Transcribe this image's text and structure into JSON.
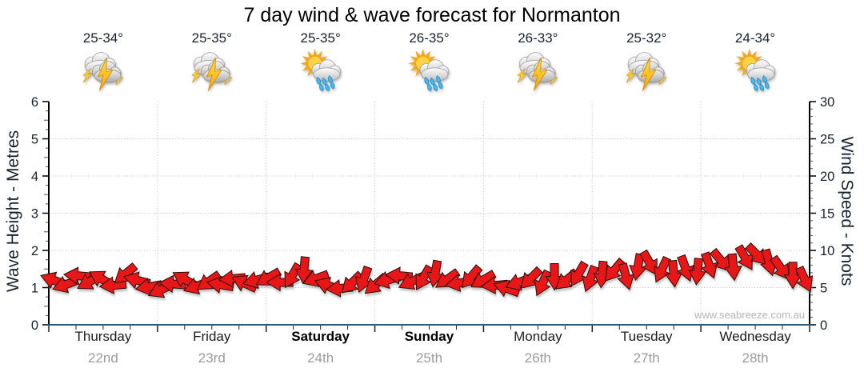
{
  "title": "7 day wind & wave forecast for Normanton",
  "watermark": "www.seabreeze.com.au",
  "days": [
    {
      "name": "Thursday",
      "date": "22nd",
      "temp": "25-34°",
      "icon": "storm",
      "is_weekend": false
    },
    {
      "name": "Friday",
      "date": "23rd",
      "temp": "25-35°",
      "icon": "storm",
      "is_weekend": false
    },
    {
      "name": "Saturday",
      "date": "24th",
      "temp": "25-35°",
      "icon": "sun-rain",
      "is_weekend": true
    },
    {
      "name": "Sunday",
      "date": "25th",
      "temp": "26-35°",
      "icon": "sun-rain",
      "is_weekend": true
    },
    {
      "name": "Monday",
      "date": "26th",
      "temp": "26-33°",
      "icon": "storm",
      "is_weekend": false
    },
    {
      "name": "Tuesday",
      "date": "27th",
      "temp": "25-32°",
      "icon": "storm",
      "is_weekend": false
    },
    {
      "name": "Wednesday",
      "date": "28th",
      "temp": "24-34°",
      "icon": "sun-rain",
      "is_weekend": false
    }
  ],
  "colors": {
    "arrow": "#e81512",
    "arrow_outline": "#2a100c",
    "x_axis_line": "#2e5e7d",
    "y_axis_line": "#000000",
    "grid": "#bfbfbf",
    "tick": "#222222",
    "date_text": "#9b9b9b",
    "watermark_text": "#b4b4b4"
  },
  "chart_data": {
    "type": "wind-arrows",
    "title": "7 day wind & wave forecast for Normanton",
    "left_axis": {
      "label": "Wave Height - Metres",
      "min": 0,
      "max": 6,
      "major_step": 1,
      "minor_step": 0.25
    },
    "right_axis": {
      "label": "Wind Speed - Knots",
      "min": 0,
      "max": 30,
      "major_step": 5,
      "minor_step": 1
    },
    "x_axis": {
      "days": 7,
      "ticks_per_day": 4,
      "grid_at_day_boundaries": true
    },
    "grid_horizontal_metres": [
      1,
      2,
      3,
      4,
      5
    ],
    "wind_speed_knots": [
      6.0,
      5.4,
      6.6,
      5.8,
      6.2,
      5.3,
      6.8,
      6.0,
      5.1,
      4.7,
      5.5,
      6.1,
      5.2,
      5.8,
      5.4,
      6.2,
      5.6,
      6.0,
      6.3,
      5.7,
      6.6,
      7.4,
      6.2,
      5.3,
      4.9,
      5.6,
      6.1,
      5.4,
      6.0,
      6.6,
      5.8,
      6.3,
      6.9,
      6.1,
      5.6,
      6.4,
      6.0,
      5.3,
      4.9,
      5.7,
      6.2,
      5.6,
      6.5,
      6.0,
      6.8,
      6.2,
      6.8,
      7.3,
      6.5,
      7.8,
      8.3,
      7.4,
      6.9,
      7.6,
      7.2,
      8.0,
      8.6,
      7.8,
      9.0,
      9.4,
      8.4,
      7.6,
      6.7,
      6.1
    ],
    "wind_dir_deg": [
      200,
      160,
      185,
      150,
      210,
      175,
      140,
      195,
      170,
      155,
      185,
      210,
      160,
      145,
      190,
      175,
      205,
      165,
      150,
      180,
      120,
      95,
      160,
      200,
      175,
      135,
      110,
      140,
      165,
      185,
      155,
      120,
      100,
      145,
      170,
      130,
      150,
      175,
      200,
      160,
      135,
      115,
      90,
      140,
      120,
      110,
      95,
      130,
      75,
      100,
      60,
      115,
      85,
      70,
      95,
      70,
      50,
      85,
      60,
      45,
      75,
      55,
      90,
      65
    ]
  }
}
